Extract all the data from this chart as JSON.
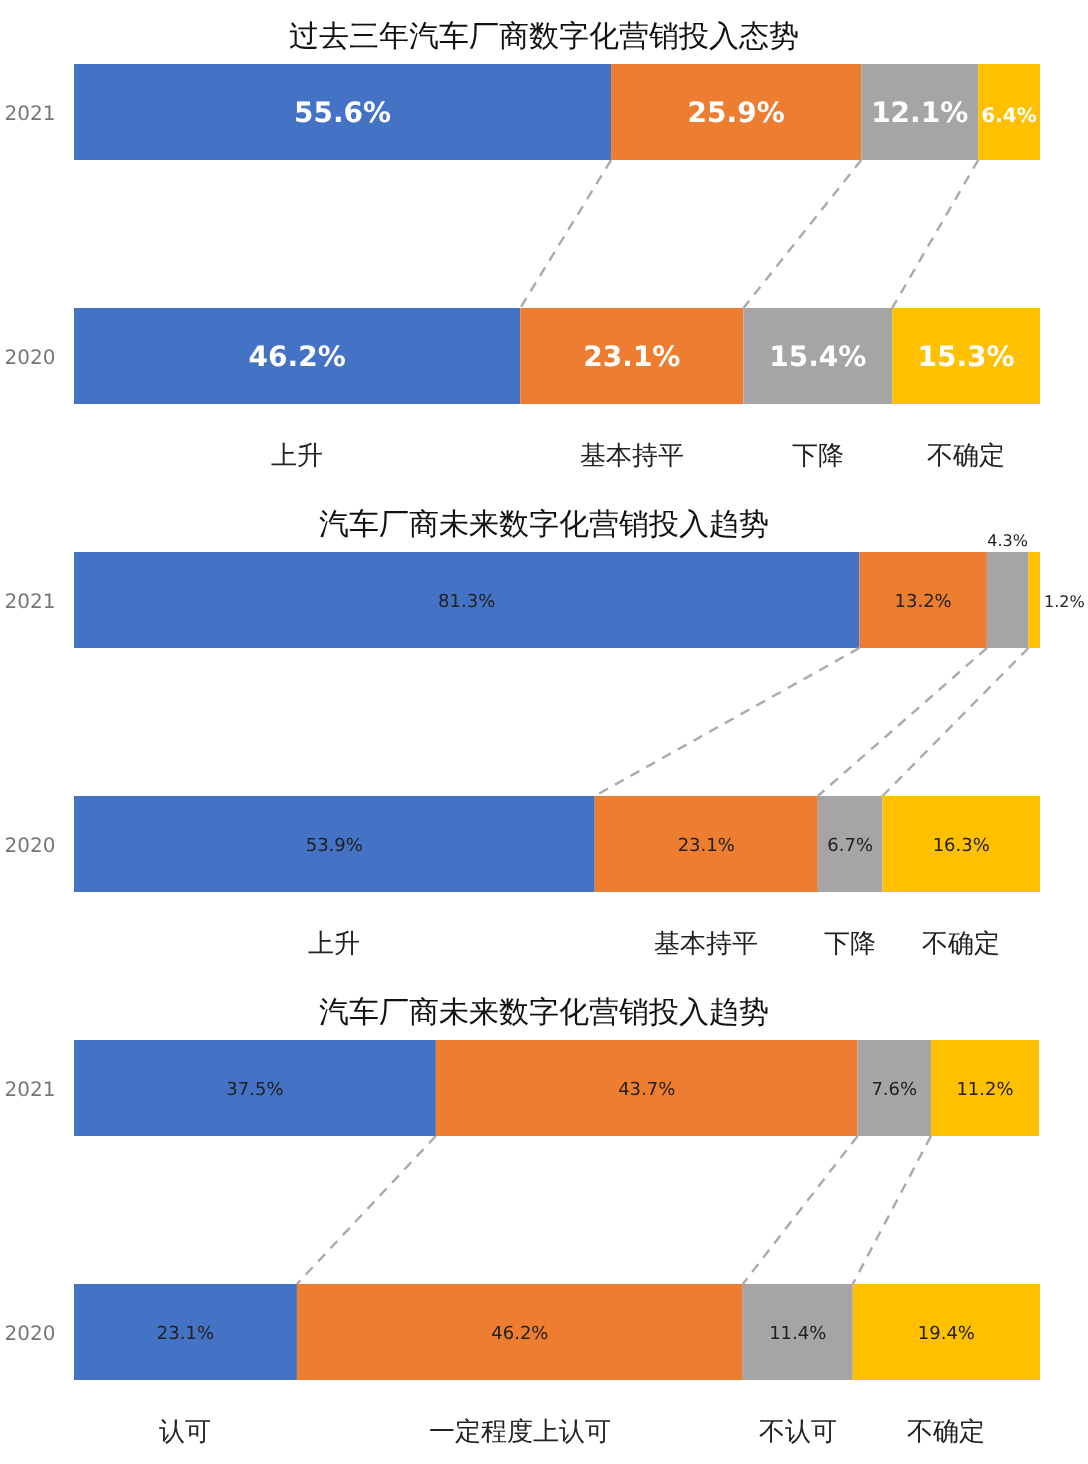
{
  "chart_data": [
    {
      "type": "bar",
      "orientation": "horizontal",
      "stacked": true,
      "title": "过去三年汽车厂商数字化营销投入态势",
      "categories": [
        "2021",
        "2020"
      ],
      "legend": "bottom",
      "series": [
        {
          "name": "上升",
          "color": "#4472c4",
          "values": [
            55.6,
            46.2
          ],
          "value_labels": [
            "55.6%",
            "46.2%"
          ]
        },
        {
          "name": "基本持平",
          "color": "#ed7d31",
          "values": [
            25.9,
            23.1
          ],
          "value_labels": [
            "25.9%",
            "23.1%"
          ]
        },
        {
          "name": "下降",
          "color": "#a5a5a5",
          "values": [
            12.1,
            15.4
          ],
          "value_labels": [
            "12.1%",
            "15.4%"
          ]
        },
        {
          "name": "不确定",
          "color": "#ffc000",
          "values": [
            6.4,
            15.3
          ],
          "value_labels": [
            "6.4%",
            "15.3%"
          ]
        }
      ]
    },
    {
      "type": "bar",
      "orientation": "horizontal",
      "stacked": true,
      "title": "汽车厂商未来数字化营销投入趋势",
      "categories": [
        "2021",
        "2020"
      ],
      "legend": "bottom",
      "series": [
        {
          "name": "上升",
          "color": "#4472c4",
          "values": [
            81.3,
            53.9
          ],
          "value_labels": [
            "81.3%",
            "53.9%"
          ]
        },
        {
          "name": "基本持平",
          "color": "#ed7d31",
          "values": [
            13.2,
            23.1
          ],
          "value_labels": [
            "13.2%",
            "23.1%"
          ]
        },
        {
          "name": "下降",
          "color": "#a5a5a5",
          "values": [
            4.3,
            6.7
          ],
          "value_labels": [
            "4.3%",
            "6.7%"
          ]
        },
        {
          "name": "不确定",
          "color": "#ffc000",
          "values": [
            1.2,
            16.3
          ],
          "value_labels": [
            "1.2%",
            "16.3%"
          ]
        }
      ]
    },
    {
      "type": "bar",
      "orientation": "horizontal",
      "stacked": true,
      "title": "汽车厂商未来数字化营销投入趋势",
      "categories": [
        "2021",
        "2020"
      ],
      "legend": "bottom",
      "series": [
        {
          "name": "认可",
          "color": "#4472c4",
          "values": [
            37.5,
            23.1
          ],
          "value_labels": [
            "37.5%",
            "23.1%"
          ]
        },
        {
          "name": "一定程度上认可",
          "color": "#ed7d31",
          "values": [
            43.7,
            46.2
          ],
          "value_labels": [
            "43.7%",
            "46.2%"
          ]
        },
        {
          "name": "不认可",
          "color": "#a5a5a5",
          "values": [
            7.6,
            11.4
          ],
          "value_labels": [
            "7.6%",
            "11.4%"
          ]
        },
        {
          "name": "不确定",
          "color": "#ffc000",
          "values": [
            11.2,
            19.4
          ],
          "value_labels": [
            "11.2%",
            "19.4%"
          ]
        }
      ]
    }
  ]
}
